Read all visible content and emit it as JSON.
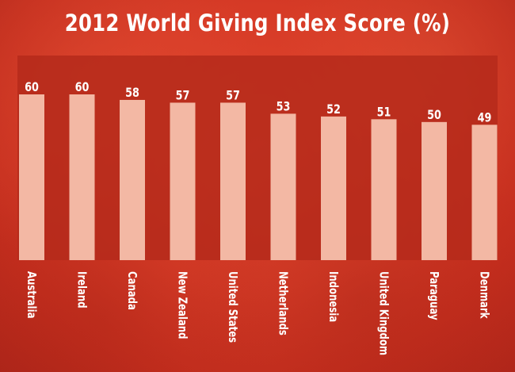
{
  "chart_data": {
    "type": "bar",
    "title": "2012 World Giving Index Score (%)",
    "categories": [
      "Australia",
      "Ireland",
      "Canada",
      "New Zealand",
      "United States",
      "Netherlands",
      "Indonesia",
      "United Kingdom",
      "Paraguay",
      "Denmark"
    ],
    "values": [
      60,
      60,
      58,
      57,
      57,
      53,
      52,
      51,
      50,
      49
    ],
    "xlabel": "",
    "ylabel": "",
    "ylim": [
      0,
      60
    ],
    "grid": false,
    "legend": "none"
  },
  "colors": {
    "background": "#d63a26",
    "plot_panel": "#b52a1b",
    "bar": "#f3b8a4",
    "text": "#ffffff"
  }
}
